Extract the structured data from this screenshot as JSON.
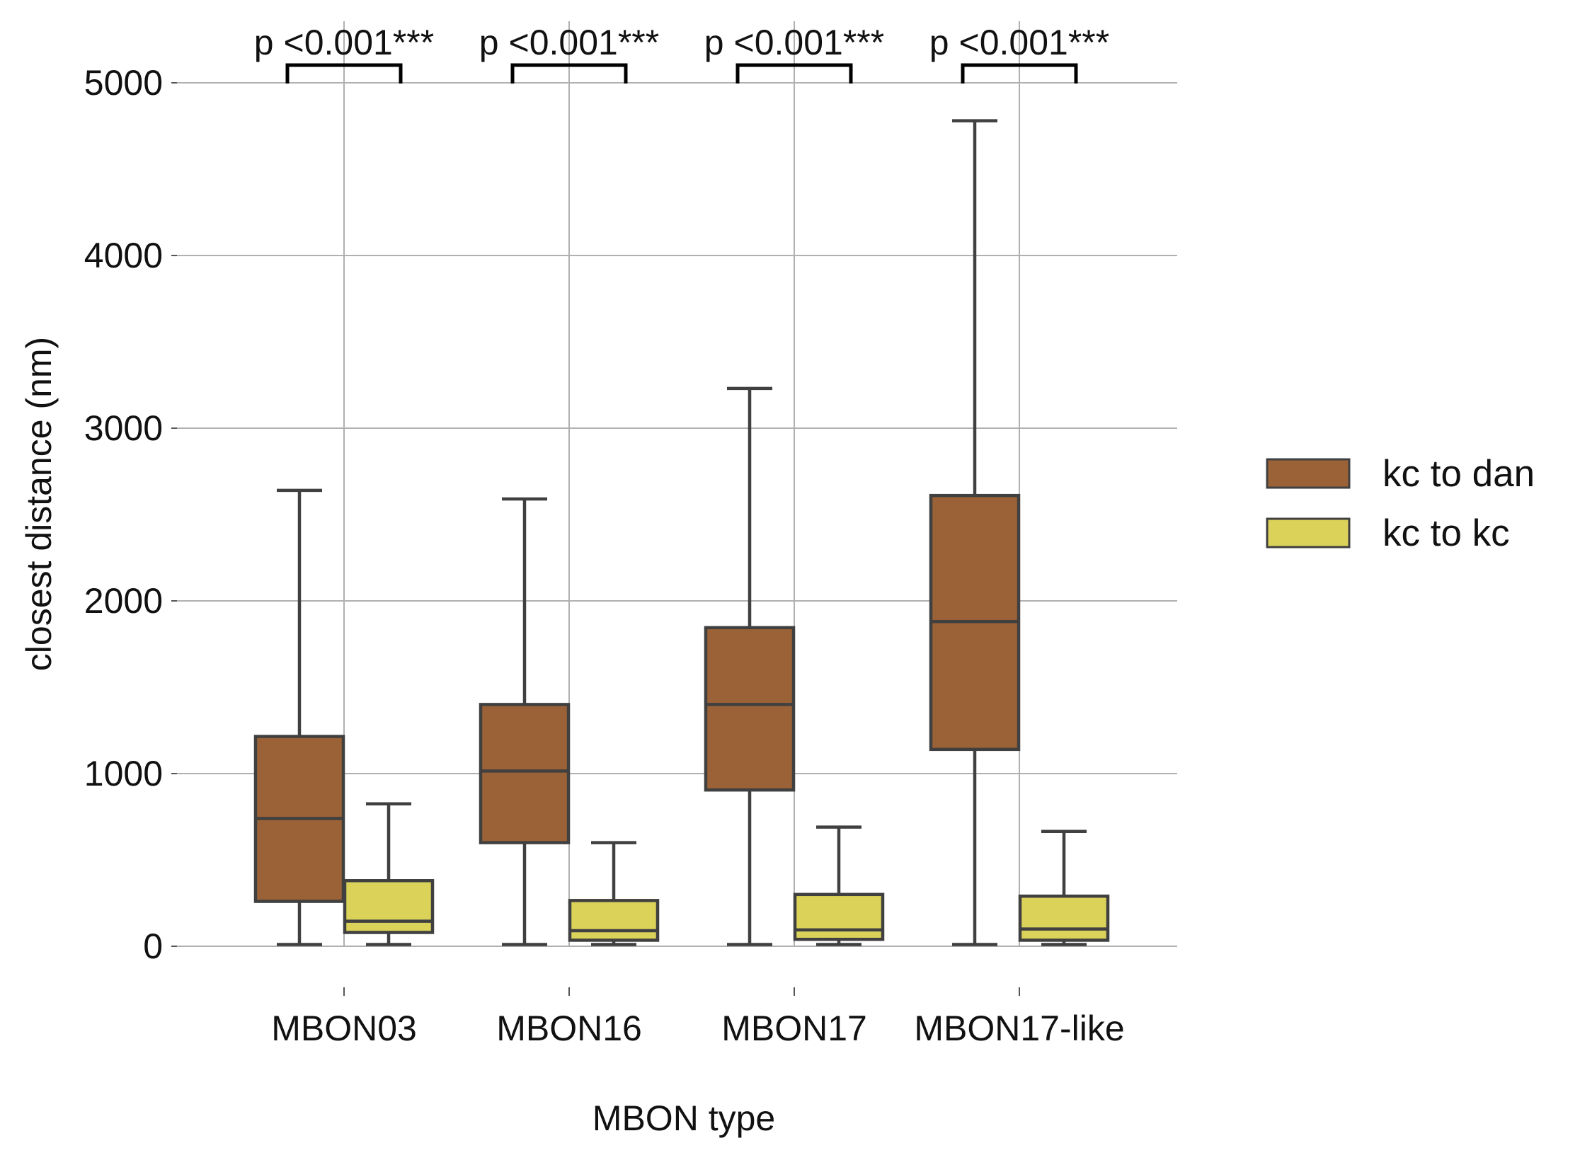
{
  "chart_data": {
    "type": "box",
    "xlabel": "MBON type",
    "ylabel": "closest distance (nm)",
    "ylim": [
      -350,
      5250
    ],
    "yticks": [
      0,
      1000,
      2000,
      3000,
      4000,
      5000
    ],
    "ytick_labels": [
      "0",
      "1000",
      "2000",
      "3000",
      "4000",
      "5000"
    ],
    "grid": true,
    "legend_placement": "right",
    "categories": [
      "MBON03",
      "MBON16",
      "MBON17",
      "MBON17-like"
    ],
    "series": [
      {
        "name": "kc to dan",
        "color": "#9c6237",
        "boxes": [
          {
            "min": 10,
            "q1": 260,
            "median": 740,
            "q3": 1215,
            "max": 2640
          },
          {
            "min": 10,
            "q1": 600,
            "median": 1015,
            "q3": 1400,
            "max": 2590
          },
          {
            "min": 10,
            "q1": 905,
            "median": 1400,
            "q3": 1845,
            "max": 3230
          },
          {
            "min": 10,
            "q1": 1140,
            "median": 1880,
            "q3": 2610,
            "max": 4780
          }
        ]
      },
      {
        "name": "kc to kc",
        "color": "#dbd25a",
        "boxes": [
          {
            "min": 10,
            "q1": 80,
            "median": 145,
            "q3": 380,
            "max": 825
          },
          {
            "min": 10,
            "q1": 35,
            "median": 90,
            "q3": 265,
            "max": 600
          },
          {
            "min": 10,
            "q1": 40,
            "median": 95,
            "q3": 300,
            "max": 690
          },
          {
            "min": 10,
            "q1": 35,
            "median": 100,
            "q3": 290,
            "max": 665
          }
        ]
      }
    ],
    "annotations": [
      "p <0.001***",
      "p <0.001***",
      "p <0.001***",
      "p <0.001***"
    ]
  }
}
